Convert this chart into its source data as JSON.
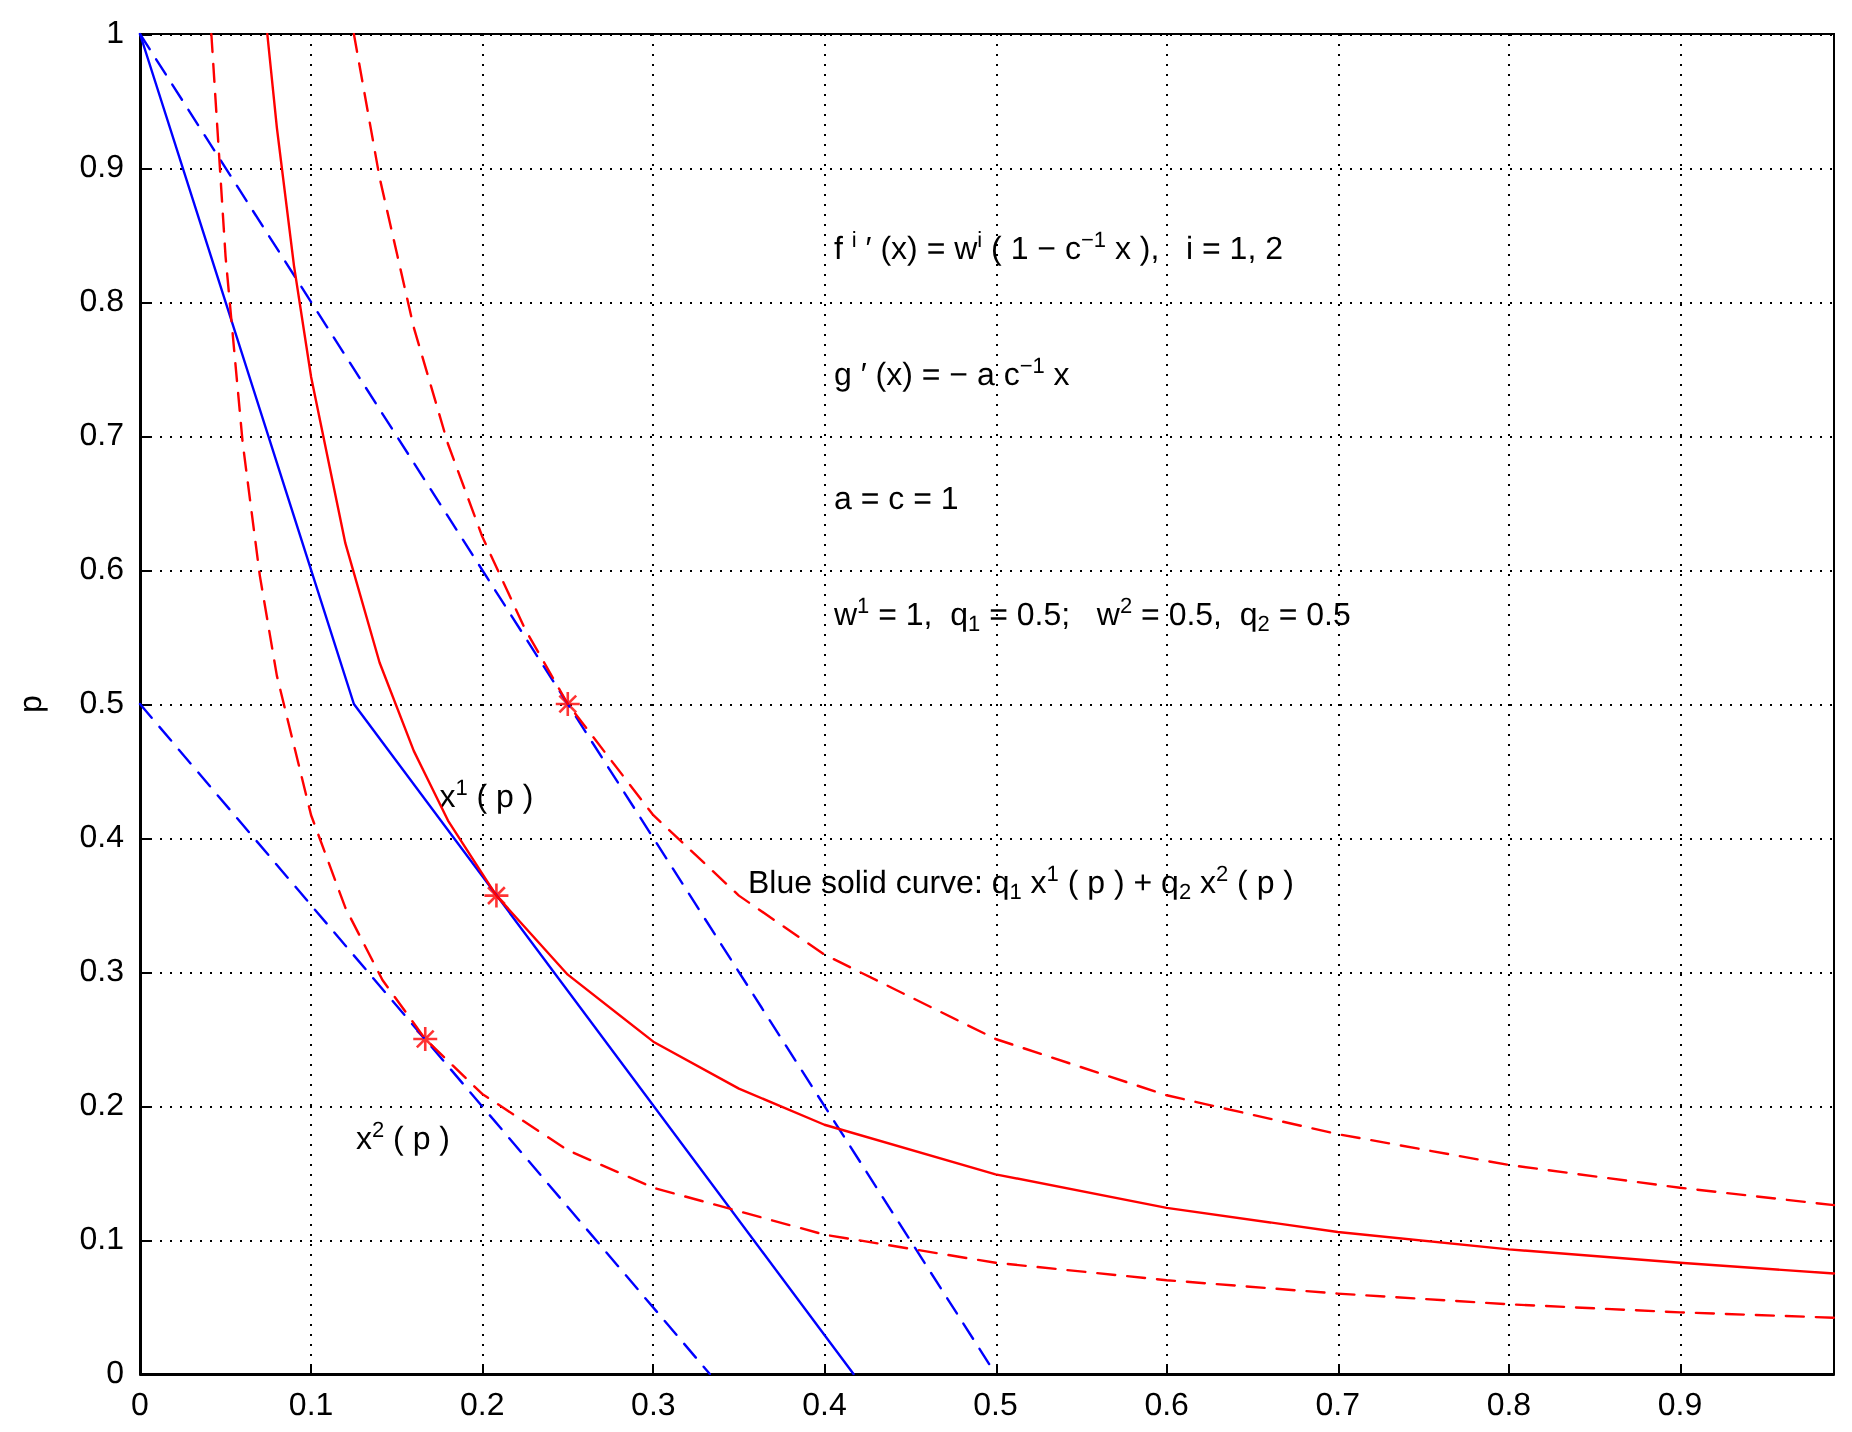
{
  "chart_data": {
    "type": "line",
    "ylabel": "p",
    "xlim": [
      0,
      0.99
    ],
    "ylim": [
      0,
      1
    ],
    "xticks": [
      0,
      0.1,
      0.2,
      0.3,
      0.4,
      0.5,
      0.6,
      0.7,
      0.8,
      0.9
    ],
    "yticks": [
      0,
      0.1,
      0.2,
      0.3,
      0.4,
      0.5,
      0.6,
      0.7,
      0.8,
      0.9,
      1
    ],
    "grid": true,
    "marker": "none",
    "series": [
      {
        "color": "#0000ff",
        "line_style": "dashed",
        "x": [
          0,
          0.5
        ],
        "values": [
          1,
          0
        ]
      },
      {
        "color": "#0000ff",
        "line_style": "dashed",
        "x": [
          0,
          0.333
        ],
        "values": [
          0.5,
          0
        ]
      },
      {
        "color": "#0000ff",
        "line_style": "solid",
        "x": [
          0,
          0.125,
          0.417
        ],
        "values": [
          1,
          0.5,
          0
        ]
      },
      {
        "color": "#ff0000",
        "line_style": "solid",
        "x": [
          0.0744,
          0.08,
          0.09,
          0.1,
          0.12,
          0.14,
          0.16,
          0.18,
          0.2083,
          0.25,
          0.3,
          0.35,
          0.4,
          0.5,
          0.6,
          0.7,
          0.8,
          0.9,
          0.99
        ],
        "values": [
          1,
          0.93,
          0.827,
          0.744,
          0.62,
          0.531,
          0.465,
          0.413,
          0.357,
          0.298,
          0.248,
          0.213,
          0.186,
          0.149,
          0.124,
          0.106,
          0.093,
          0.083,
          0.075
        ]
      },
      {
        "color": "#ff0000",
        "line_style": "dashed",
        "x": [
          0.125,
          0.14,
          0.16,
          0.18,
          0.2,
          0.225,
          0.25,
          0.3,
          0.35,
          0.4,
          0.5,
          0.6,
          0.7,
          0.8,
          0.9,
          0.99
        ],
        "values": [
          1,
          0.893,
          0.781,
          0.694,
          0.625,
          0.556,
          0.5,
          0.417,
          0.357,
          0.313,
          0.25,
          0.208,
          0.179,
          0.156,
          0.139,
          0.126
        ]
      },
      {
        "color": "#ff0000",
        "line_style": "dashed",
        "x": [
          0.0417,
          0.05,
          0.06,
          0.07,
          0.08,
          0.1,
          0.12,
          0.1417,
          0.1667,
          0.2,
          0.25,
          0.3,
          0.4,
          0.5,
          0.6,
          0.7,
          0.8,
          0.9,
          0.99
        ],
        "values": [
          1,
          0.834,
          0.695,
          0.596,
          0.521,
          0.417,
          0.348,
          0.294,
          0.25,
          0.209,
          0.167,
          0.139,
          0.104,
          0.083,
          0.07,
          0.06,
          0.052,
          0.046,
          0.042
        ]
      },
      {
        "type": "scatter",
        "color": "#ff0000",
        "marker": "cross",
        "x": [
          0.25,
          0.2083,
          0.1667
        ],
        "values": [
          0.5,
          0.357,
          0.25
        ]
      }
    ],
    "annotations": [
      "f $^{i}$ ′ (x) = w$^{i}$ ( 1 − c$^{−1}$ x ),   i = 1, 2",
      "g ′ (x) = − a c$^{−1}$ x",
      "a = c = 1",
      "w$^{1}$ = 1,  q$_{1}$ = 0.5;   w$^{2}$ = 0.5,  q$_{2}$ = 0.5",
      "Blue solid curve: q$_{1}$ x$^{1}$ ( p ) + q$_{2}$ x$^{2}$ ( p )",
      {
        "text": "x$^{1}$ ( p )",
        "x": 0.175,
        "y": 0.43
      },
      "x$^{2}$ ( p )"
    ]
  }
}
